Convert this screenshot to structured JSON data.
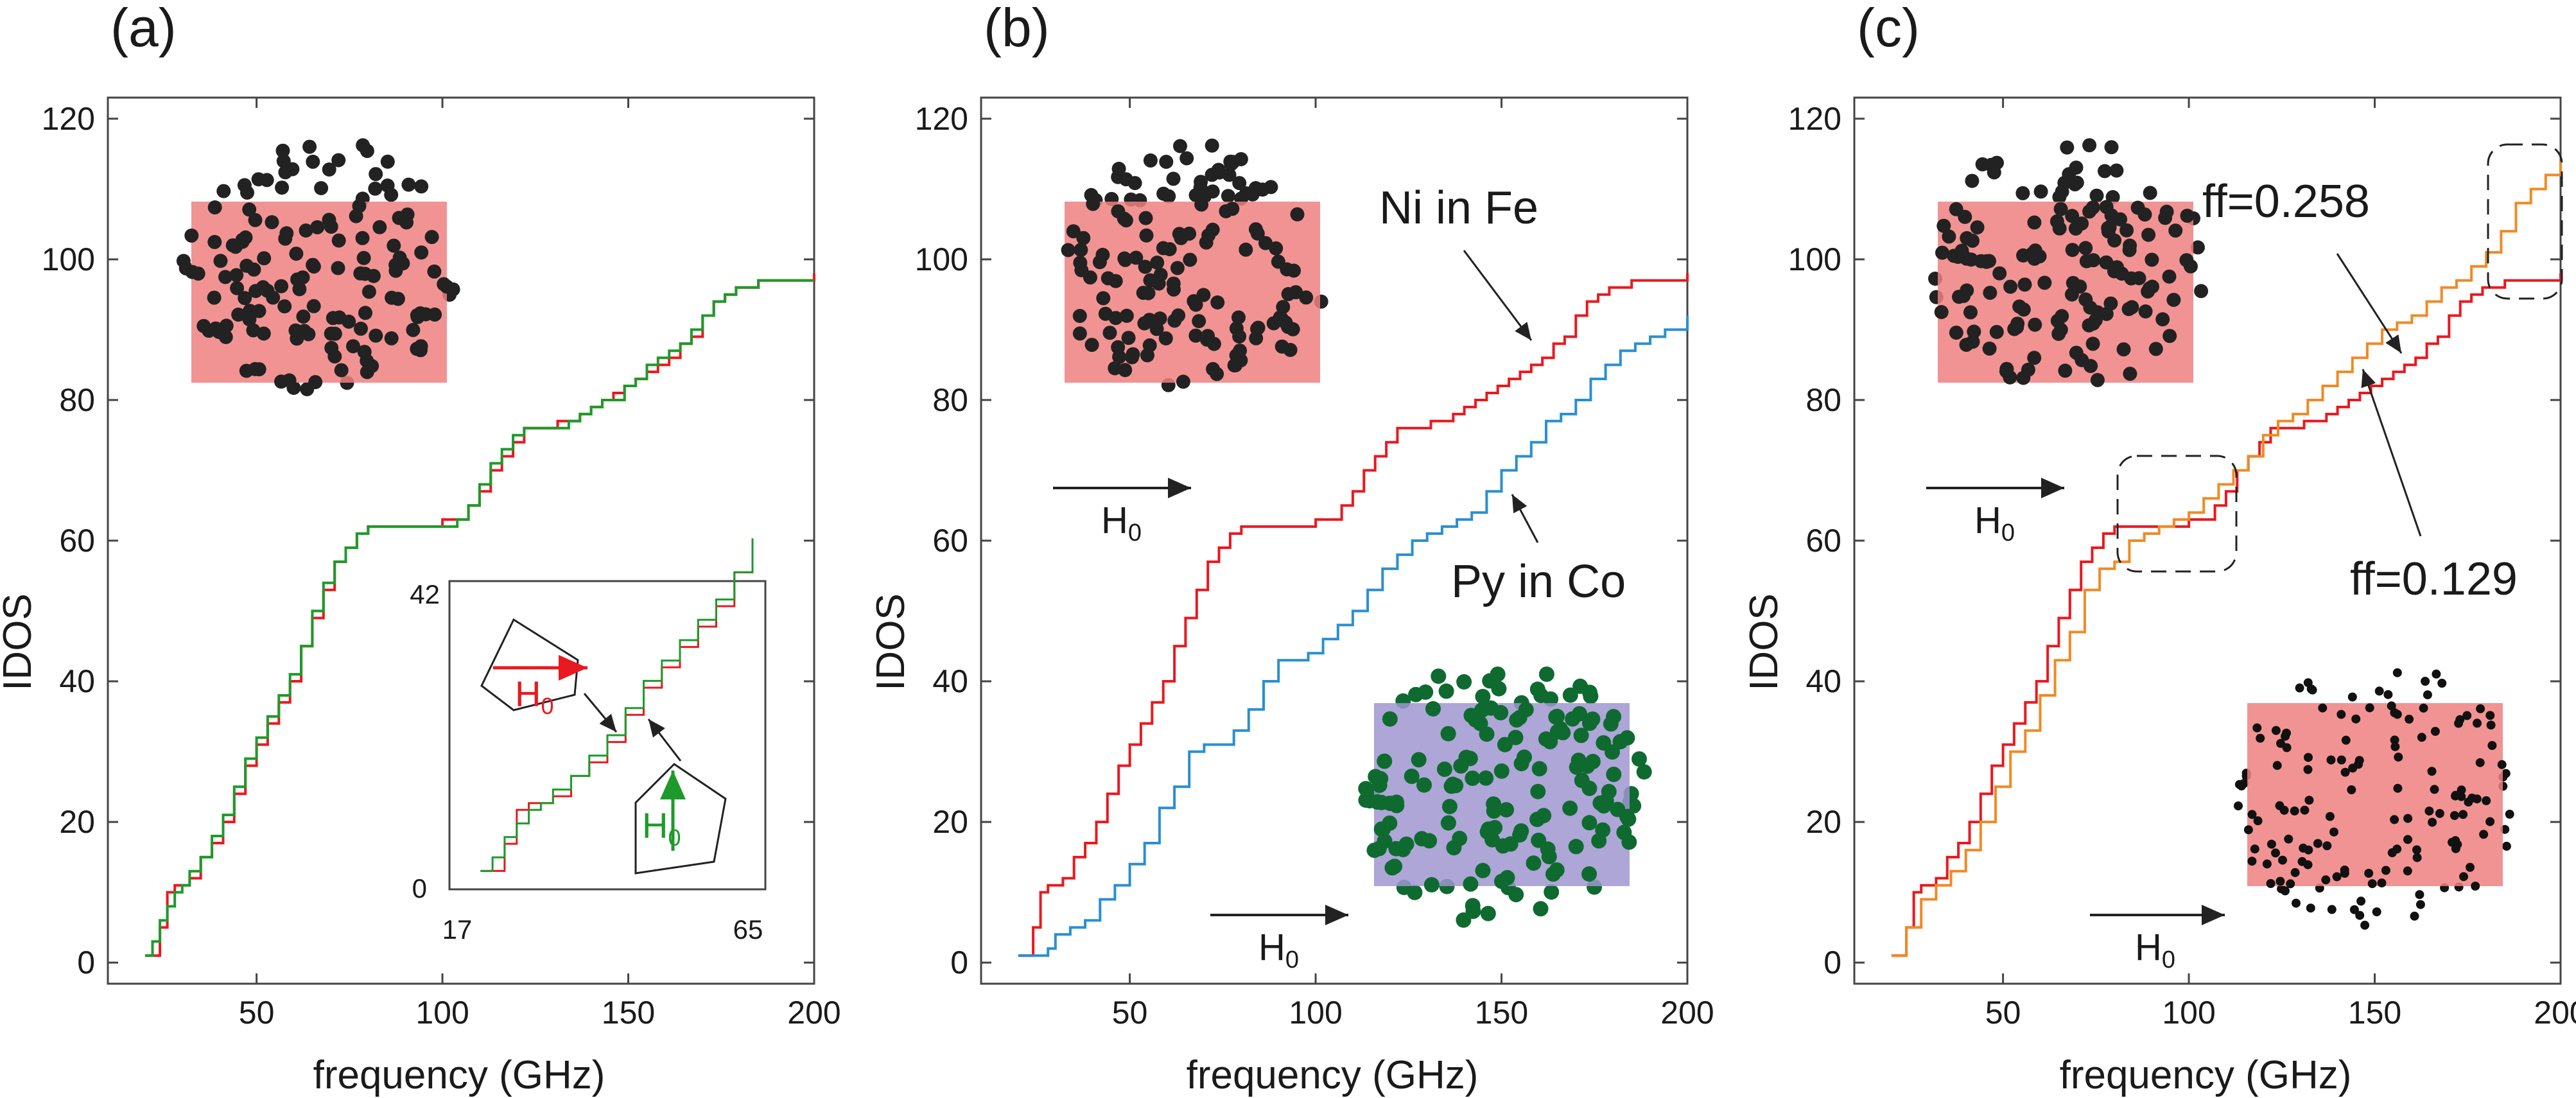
{
  "chart_data": [
    {
      "panel_label": "(a)",
      "type": "line",
      "xlabel": "frequency (GHz)",
      "ylabel": "IDOS",
      "xlim": [
        10,
        200
      ],
      "ylim": [
        -3,
        123
      ],
      "xticks": [
        "50",
        "100",
        "150",
        "200"
      ],
      "yticks": [
        "0",
        "20",
        "40",
        "60",
        "80",
        "100",
        "120"
      ],
      "series": [
        {
          "name": "red",
          "color": "#e8191f",
          "x": [
            20,
            22,
            24,
            26,
            28,
            30,
            32,
            35,
            38,
            41,
            44,
            47,
            50,
            53,
            56,
            59,
            62,
            65,
            68,
            71,
            74,
            77,
            80,
            85,
            90,
            95,
            100,
            104,
            107,
            110,
            113,
            116,
            119,
            122,
            125,
            128,
            131,
            134,
            137,
            140,
            143,
            146,
            149,
            152,
            155,
            158,
            161,
            164,
            167,
            170,
            173,
            176,
            179,
            182,
            185,
            188,
            191,
            194,
            197,
            200
          ],
          "y": [
            1,
            1,
            5,
            10,
            11,
            11,
            12,
            15,
            17,
            20,
            24,
            28,
            31,
            34,
            37,
            40,
            45,
            49,
            53,
            57,
            59,
            61,
            62,
            62,
            62,
            62,
            63,
            63,
            65,
            67,
            70,
            72,
            74,
            76,
            76,
            76,
            77,
            77,
            78,
            79,
            80,
            81,
            82,
            83,
            84,
            85,
            86,
            88,
            89,
            92,
            94,
            95,
            96,
            96,
            97,
            97,
            97,
            97,
            97,
            98
          ]
        },
        {
          "name": "green",
          "color": "#1e9a2b",
          "x": [
            20,
            22,
            24,
            26,
            28,
            30,
            32,
            35,
            38,
            41,
            44,
            47,
            50,
            53,
            56,
            59,
            62,
            65,
            68,
            71,
            74,
            77,
            80,
            85,
            90,
            95,
            100,
            104,
            107,
            110,
            113,
            116,
            119,
            122,
            125,
            128,
            131,
            134,
            137,
            140,
            143,
            146,
            149,
            152,
            155,
            158,
            161,
            164,
            167,
            170,
            173,
            176,
            179,
            182,
            185,
            188,
            191,
            194,
            197,
            200
          ],
          "y": [
            1,
            3,
            6,
            8,
            10,
            11,
            13,
            15,
            18,
            21,
            25,
            29,
            32,
            35,
            38,
            41,
            45,
            50,
            54,
            57,
            59,
            61,
            62,
            62,
            62,
            62,
            62,
            63,
            65,
            68,
            71,
            73,
            75,
            76,
            76,
            76,
            76,
            77,
            78,
            79,
            80,
            80,
            82,
            83,
            85,
            86,
            87,
            88,
            90,
            92,
            94,
            95,
            96,
            96,
            97,
            97,
            97,
            97,
            97,
            97
          ]
        }
      ],
      "inset": {
        "xlabels": [
          "17",
          "65"
        ],
        "ylabels": [
          "42",
          "0"
        ],
        "x": [
          17,
          65
        ],
        "y": [
          0,
          42
        ],
        "red_arrow_label": "H",
        "green_arrow_label": "H",
        "subscript": "0"
      },
      "field_label": null
    },
    {
      "panel_label": "(b)",
      "type": "line",
      "xlabel": "frequency (GHz)",
      "ylabel": "IDOS",
      "xlim": [
        10,
        200
      ],
      "ylim": [
        -3,
        123
      ],
      "xticks": [
        "50",
        "100",
        "150",
        "200"
      ],
      "yticks": [
        "0",
        "20",
        "40",
        "60",
        "80",
        "100",
        "120"
      ],
      "series": [
        {
          "name": "Ni in Fe",
          "color": "#e8191f",
          "x": [
            20,
            22,
            24,
            26,
            28,
            30,
            32,
            35,
            38,
            41,
            44,
            47,
            50,
            53,
            56,
            59,
            62,
            65,
            68,
            71,
            74,
            77,
            80,
            85,
            90,
            95,
            100,
            104,
            107,
            110,
            113,
            116,
            119,
            122,
            125,
            128,
            131,
            134,
            137,
            140,
            143,
            146,
            149,
            152,
            155,
            158,
            161,
            164,
            167,
            170,
            173,
            176,
            179,
            182,
            185,
            188,
            191,
            194,
            197,
            200
          ],
          "y": [
            1,
            1,
            5,
            10,
            11,
            11,
            12,
            15,
            17,
            20,
            24,
            28,
            31,
            34,
            37,
            40,
            45,
            49,
            53,
            57,
            59,
            61,
            62,
            62,
            62,
            62,
            63,
            63,
            65,
            67,
            70,
            72,
            74,
            76,
            76,
            76,
            77,
            77,
            78,
            79,
            80,
            81,
            82,
            83,
            84,
            85,
            86,
            88,
            89,
            92,
            94,
            95,
            96,
            96,
            97,
            97,
            97,
            97,
            97,
            98
          ]
        },
        {
          "name": "Py in Co",
          "color": "#2a8fd0",
          "x": [
            20,
            24,
            28,
            30,
            34,
            38,
            42,
            46,
            50,
            54,
            58,
            62,
            66,
            70,
            74,
            78,
            82,
            86,
            90,
            94,
            98,
            102,
            106,
            110,
            114,
            118,
            122,
            126,
            130,
            134,
            138,
            142,
            146,
            150,
            154,
            158,
            162,
            166,
            170,
            174,
            178,
            182,
            186,
            190,
            194,
            200
          ],
          "y": [
            1,
            1,
            2,
            4,
            5,
            6,
            9,
            11,
            14,
            17,
            22,
            25,
            30,
            31,
            31,
            33,
            36,
            40,
            43,
            43,
            44,
            46,
            48,
            50,
            53,
            56,
            58,
            60,
            61,
            62,
            63,
            64,
            67,
            70,
            72,
            74,
            77,
            78,
            80,
            83,
            85,
            87,
            88,
            89,
            90,
            92
          ]
        }
      ],
      "annotations": [
        "Ni in Fe",
        "Py in Co"
      ],
      "field_label": {
        "text": "H",
        "sub": "0"
      }
    },
    {
      "panel_label": "(c)",
      "type": "line",
      "xlabel": "frequency (GHz)",
      "ylabel": "IDOS",
      "xlim": [
        10,
        200
      ],
      "ylim": [
        -3,
        123
      ],
      "xticks": [
        "50",
        "100",
        "150",
        "200"
      ],
      "yticks": [
        "0",
        "20",
        "40",
        "60",
        "80",
        "100",
        "120"
      ],
      "series": [
        {
          "name": "ff=0.129",
          "color": "#e8191f",
          "x": [
            20,
            22,
            24,
            26,
            28,
            30,
            32,
            35,
            38,
            41,
            44,
            47,
            50,
            53,
            56,
            59,
            62,
            65,
            68,
            71,
            74,
            77,
            80,
            85,
            90,
            95,
            100,
            104,
            107,
            110,
            113,
            116,
            119,
            122,
            125,
            128,
            131,
            134,
            137,
            140,
            143,
            146,
            149,
            152,
            155,
            158,
            161,
            164,
            167,
            170,
            173,
            176,
            179,
            182,
            185,
            188,
            191,
            194,
            197,
            200
          ],
          "y": [
            1,
            1,
            5,
            10,
            11,
            11,
            12,
            15,
            17,
            20,
            24,
            28,
            31,
            34,
            37,
            40,
            45,
            49,
            53,
            57,
            59,
            61,
            62,
            62,
            62,
            62,
            63,
            63,
            65,
            67,
            70,
            72,
            74,
            76,
            76,
            76,
            77,
            77,
            78,
            79,
            80,
            81,
            82,
            83,
            84,
            85,
            86,
            88,
            89,
            92,
            94,
            95,
            96,
            96,
            97,
            97,
            97,
            97,
            97,
            98
          ]
        },
        {
          "name": "ff=0.258",
          "color": "#f08a24",
          "x": [
            20,
            24,
            28,
            32,
            36,
            40,
            44,
            48,
            52,
            56,
            60,
            64,
            68,
            72,
            76,
            80,
            84,
            88,
            92,
            96,
            100,
            104,
            108,
            112,
            116,
            120,
            124,
            128,
            132,
            136,
            140,
            144,
            148,
            152,
            156,
            160,
            164,
            168,
            172,
            176,
            180,
            184,
            188,
            192,
            196,
            200
          ],
          "y": [
            1,
            5,
            9,
            11,
            13,
            16,
            20,
            25,
            30,
            33,
            38,
            43,
            47,
            53,
            56,
            57,
            60,
            61,
            62,
            63,
            64,
            66,
            68,
            70,
            72,
            75,
            77,
            78,
            80,
            82,
            84,
            86,
            88,
            90,
            91,
            92,
            94,
            96,
            97,
            99,
            101,
            104,
            108,
            110,
            112,
            114
          ]
        }
      ],
      "annotations": [
        "ff=0.258",
        "ff=0.129"
      ],
      "field_label": {
        "text": "H",
        "sub": "0"
      }
    }
  ]
}
